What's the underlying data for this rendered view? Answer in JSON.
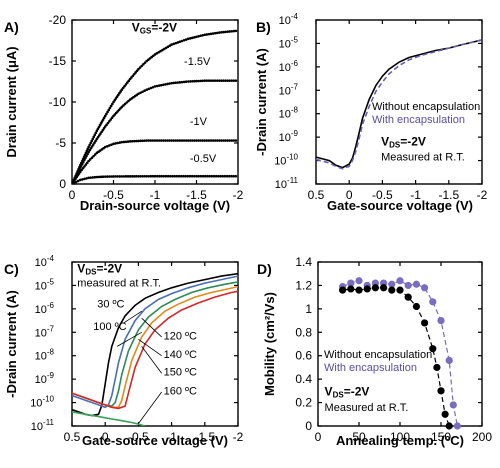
{
  "chart_data": [
    {
      "panel": "A)",
      "type": "line",
      "xlabel": "Drain-source voltage (V)",
      "ylabel": "Drain current (μA)",
      "xlim": [
        0,
        -2
      ],
      "ylim": [
        0,
        -20
      ],
      "xticks": [
        {
          "v": 0,
          "t": "0"
        },
        {
          "v": -0.5,
          "t": "-0.5"
        },
        {
          "v": -1,
          "t": "-1"
        },
        {
          "v": -1.5,
          "t": "-1.5"
        },
        {
          "v": -2,
          "t": "-2"
        }
      ],
      "yticks": [
        {
          "v": 0,
          "t": "0"
        },
        {
          "v": -5,
          "t": "-5"
        },
        {
          "v": -10,
          "t": "-10"
        },
        {
          "v": -15,
          "t": "-15"
        },
        {
          "v": -20,
          "t": "-20"
        }
      ],
      "annotations": [
        {
          "text": "V",
          "sub": "GS",
          "rest": "=-2V",
          "x": -0.72,
          "y": -18.6
        },
        {
          "text": "-1.5V",
          "x": -1.35,
          "y": -14.5
        },
        {
          "text": "-1V",
          "x": -1.42,
          "y": -7.2
        },
        {
          "text": "-0.5V",
          "x": -1.42,
          "y": -2.7
        }
      ],
      "series": [
        {
          "label": "V_GS=-2V",
          "style": "dotted",
          "x": [
            0,
            -0.1,
            -0.2,
            -0.3,
            -0.4,
            -0.5,
            -0.6,
            -0.7,
            -0.8,
            -0.9,
            -1.0,
            -1.2,
            -1.4,
            -1.6,
            -1.8,
            -2.0
          ],
          "y": [
            0,
            -2.3,
            -4.5,
            -6.5,
            -8.3,
            -10.0,
            -11.5,
            -12.8,
            -14.0,
            -15.0,
            -15.8,
            -17.0,
            -17.7,
            -18.2,
            -18.5,
            -18.7
          ]
        },
        {
          "label": "-1.5V",
          "style": "dotted",
          "x": [
            0,
            -0.1,
            -0.2,
            -0.3,
            -0.4,
            -0.5,
            -0.6,
            -0.7,
            -0.8,
            -0.9,
            -1.0,
            -1.2,
            -1.4,
            -1.6,
            -1.8,
            -2.0
          ],
          "y": [
            0,
            -2.0,
            -3.9,
            -5.5,
            -7.0,
            -8.3,
            -9.4,
            -10.3,
            -11.0,
            -11.5,
            -11.9,
            -12.3,
            -12.5,
            -12.6,
            -12.6,
            -12.6
          ]
        },
        {
          "label": "-1V",
          "style": "dotted",
          "x": [
            0,
            -0.1,
            -0.2,
            -0.3,
            -0.4,
            -0.5,
            -0.6,
            -0.7,
            -0.8,
            -0.9,
            -1.0,
            -1.2,
            -1.4,
            -1.6,
            -1.8,
            -2.0
          ],
          "y": [
            0,
            -1.5,
            -2.8,
            -3.8,
            -4.5,
            -4.9,
            -5.1,
            -5.2,
            -5.25,
            -5.3,
            -5.3,
            -5.3,
            -5.3,
            -5.3,
            -5.3,
            -5.3
          ]
        },
        {
          "label": "-0.5V",
          "style": "dotted",
          "x": [
            0,
            -0.1,
            -0.2,
            -0.3,
            -0.4,
            -0.5,
            -0.6,
            -0.8,
            -1.0,
            -1.5,
            -2.0
          ],
          "y": [
            0,
            -0.5,
            -0.75,
            -0.85,
            -0.9,
            -0.92,
            -0.93,
            -0.94,
            -0.95,
            -0.95,
            -0.95
          ]
        }
      ]
    },
    {
      "panel": "B)",
      "type": "line",
      "log_y": true,
      "xlabel": "Gate-source voltage (V)",
      "ylabel": "-Drain current (A)",
      "xlim": [
        0.5,
        -2
      ],
      "ylim_exp": [
        -11,
        -4
      ],
      "xticks": [
        {
          "v": 0.5,
          "t": "0.5"
        },
        {
          "v": 0,
          "t": "0"
        },
        {
          "v": -0.5,
          "t": "-0.5"
        },
        {
          "v": -1,
          "t": "-1"
        },
        {
          "v": -1.5,
          "t": "-1.5"
        },
        {
          "v": -2,
          "t": "-2"
        }
      ],
      "yticks_exp": [
        -4,
        -5,
        -6,
        -7,
        -8,
        -9,
        -10,
        -11
      ],
      "legend": [
        {
          "label": "Without encapsulation",
          "color": "#000000"
        },
        {
          "label": "With encapsulation",
          "color": "#5b4ea0"
        }
      ],
      "annotations": [
        {
          "text": "V",
          "sub": "DS",
          "rest": "=-2V",
          "x": -0.48,
          "y": -9.35
        },
        {
          "text": "Measured at R.T.",
          "x": -0.48,
          "y": -10.0
        }
      ],
      "series": [
        {
          "name": "Without encapsulation",
          "color": "#000000",
          "style": "solid",
          "x": [
            0.5,
            0.3,
            0.2,
            0.1,
            0.0,
            -0.05,
            -0.1,
            -0.15,
            -0.2,
            -0.3,
            -0.4,
            -0.5,
            -0.6,
            -0.75,
            -0.9,
            -1.1,
            -1.3,
            -1.5,
            -1.7,
            -2.0
          ],
          "log10y": [
            -9.85,
            -10.0,
            -10.2,
            -10.3,
            -10.15,
            -9.9,
            -9.4,
            -8.8,
            -8.2,
            -7.4,
            -6.8,
            -6.4,
            -6.1,
            -5.8,
            -5.6,
            -5.45,
            -5.3,
            -5.2,
            -5.05,
            -4.85
          ]
        },
        {
          "name": "With encapsulation",
          "color": "#6a5cb0",
          "style": "dashed",
          "x": [
            0.5,
            0.3,
            0.2,
            0.1,
            0.0,
            -0.05,
            -0.1,
            -0.15,
            -0.2,
            -0.3,
            -0.4,
            -0.5,
            -0.6,
            -0.75,
            -0.9,
            -1.1,
            -1.3,
            -1.5,
            -1.7,
            -2.0
          ],
          "log10y": [
            -9.95,
            -10.1,
            -10.25,
            -10.35,
            -10.25,
            -10.0,
            -9.6,
            -9.05,
            -8.45,
            -7.7,
            -7.05,
            -6.65,
            -6.3,
            -5.95,
            -5.7,
            -5.5,
            -5.35,
            -5.2,
            -5.05,
            -4.85
          ]
        }
      ]
    },
    {
      "panel": "C)",
      "type": "line",
      "log_y": true,
      "xlabel": "Gate-source voltage (V)",
      "ylabel": "-Drain current (A)",
      "xlim": [
        0.5,
        -2
      ],
      "ylim_exp": [
        -11,
        -4
      ],
      "xticks": [
        {
          "v": 0.5,
          "t": "0.5"
        },
        {
          "v": 0,
          "t": "0"
        },
        {
          "v": -0.5,
          "t": "-0.5"
        },
        {
          "v": -1,
          "t": "-1"
        },
        {
          "v": -1.5,
          "t": "-1.5"
        },
        {
          "v": -2,
          "t": "-2"
        }
      ],
      "yticks_exp": [
        -4,
        -5,
        -6,
        -7,
        -8,
        -9,
        -10,
        -11
      ],
      "annotations": [
        {
          "text": "V",
          "sub": "DS",
          "rest": "=-2V",
          "x": 0.42,
          "y": -4.45,
          "bold": true
        },
        {
          "text": "measured at R.T.",
          "x": 0.42,
          "y": -5.05
        },
        {
          "text": "30 ºC",
          "x": 0.12,
          "y": -5.95
        },
        {
          "text": "100 ºC",
          "x": 0.18,
          "y": -6.9
        },
        {
          "text": "120 ºC",
          "x": -0.88,
          "y": -7.3
        },
        {
          "text": "140 ºC",
          "x": -0.88,
          "y": -8.1
        },
        {
          "text": "150 ºC",
          "x": -0.88,
          "y": -8.85
        },
        {
          "text": "160 ºC",
          "x": -0.88,
          "y": -9.65
        }
      ],
      "series": [
        {
          "name": "30 ºC",
          "color": "#000000",
          "x": [
            0.5,
            0.4,
            0.3,
            0.2,
            0.1,
            0.05,
            0.0,
            -0.05,
            -0.1,
            -0.2,
            -0.3,
            -0.45,
            -0.6,
            -0.8,
            -1.0,
            -1.25,
            -1.5,
            -1.75,
            -2.0
          ],
          "log10y": [
            -10.3,
            -10.4,
            -10.5,
            -10.55,
            -10.5,
            -10.1,
            -9.2,
            -8.3,
            -7.6,
            -6.8,
            -6.3,
            -5.85,
            -5.55,
            -5.3,
            -5.1,
            -4.9,
            -4.75,
            -4.6,
            -4.5
          ]
        },
        {
          "name": "100 ºC",
          "color": "#4a6fb5",
          "x": [
            0.5,
            0.3,
            0.1,
            0.0,
            -0.05,
            -0.1,
            -0.15,
            -0.2,
            -0.3,
            -0.45,
            -0.6,
            -0.8,
            -1.0,
            -1.25,
            -1.5,
            -1.75,
            -2.0
          ],
          "log10y": [
            -9.7,
            -9.9,
            -10.1,
            -10.2,
            -10.1,
            -9.7,
            -9.0,
            -8.3,
            -7.3,
            -6.5,
            -6.0,
            -5.6,
            -5.35,
            -5.1,
            -4.9,
            -4.75,
            -4.6
          ]
        },
        {
          "name": "120 ºC",
          "color": "#2e8b57",
          "x": [
            0.5,
            0.3,
            0.1,
            0.0,
            -0.1,
            -0.15,
            -0.2,
            -0.25,
            -0.35,
            -0.5,
            -0.65,
            -0.85,
            -1.05,
            -1.3,
            -1.55,
            -1.8,
            -2.0
          ],
          "log10y": [
            -9.6,
            -9.8,
            -10.0,
            -10.1,
            -10.15,
            -10.0,
            -9.5,
            -8.8,
            -7.8,
            -6.9,
            -6.35,
            -5.9,
            -5.6,
            -5.3,
            -5.1,
            -4.95,
            -4.85
          ]
        },
        {
          "name": "140 ºC",
          "color": "#e08a1e",
          "x": [
            0.5,
            0.3,
            0.1,
            0.0,
            -0.1,
            -0.2,
            -0.25,
            -0.3,
            -0.4,
            -0.55,
            -0.7,
            -0.9,
            -1.1,
            -1.35,
            -1.6,
            -1.85,
            -2.0
          ],
          "log10y": [
            -9.6,
            -9.8,
            -10.0,
            -10.1,
            -10.2,
            -10.2,
            -9.9,
            -9.3,
            -8.2,
            -7.2,
            -6.6,
            -6.1,
            -5.8,
            -5.5,
            -5.3,
            -5.15,
            -5.05
          ]
        },
        {
          "name": "150 ºC",
          "color": "#d62728",
          "x": [
            0.5,
            0.3,
            0.1,
            0.0,
            -0.1,
            -0.2,
            -0.3,
            -0.35,
            -0.45,
            -0.6,
            -0.75,
            -0.95,
            -1.15,
            -1.4,
            -1.65,
            -1.9,
            -2.0
          ],
          "log10y": [
            -9.6,
            -9.8,
            -10.0,
            -10.1,
            -10.2,
            -10.25,
            -10.15,
            -9.6,
            -8.5,
            -7.5,
            -6.9,
            -6.4,
            -6.05,
            -5.75,
            -5.5,
            -5.3,
            -5.25
          ]
        },
        {
          "name": "160 ºC",
          "color": "#3aa05a",
          "x": [
            0.5,
            0.3,
            0.1,
            0.0,
            -0.1,
            -0.2,
            -0.3,
            -0.4,
            -0.5,
            -0.6
          ],
          "log10y": [
            -10.4,
            -10.5,
            -10.6,
            -10.65,
            -10.7,
            -10.75,
            -10.8,
            -10.85,
            -10.92,
            -11.0
          ]
        }
      ]
    },
    {
      "panel": "D)",
      "type": "scatter",
      "xlabel": "Annealing temp. (°C)",
      "ylabel": "Mobility (cm²/Vs)",
      "xlim": [
        0,
        200
      ],
      "ylim": [
        0,
        1.4
      ],
      "xticks": [
        {
          "v": 0,
          "t": "0"
        },
        {
          "v": 50,
          "t": "50"
        },
        {
          "v": 100,
          "t": "100"
        },
        {
          "v": 150,
          "t": "150"
        },
        {
          "v": 200,
          "t": "200"
        }
      ],
      "yticks": [
        {
          "v": 0,
          "t": "0"
        },
        {
          "v": 0.2,
          "t": "0.2"
        },
        {
          "v": 0.4,
          "t": "0.4"
        },
        {
          "v": 0.6,
          "t": "0.6"
        },
        {
          "v": 0.8,
          "t": "0.8"
        },
        {
          "v": 1,
          "t": "1"
        },
        {
          "v": 1.2,
          "t": "1.2"
        },
        {
          "v": 1.4,
          "t": "1.4"
        }
      ],
      "legend": [
        {
          "label": "Without encapsulation",
          "color": "#000000"
        },
        {
          "label": "With encapsulation",
          "color": "#5b4ea0"
        }
      ],
      "annotations": [
        {
          "text": "V",
          "sub": "DS",
          "rest": "=-2V",
          "x": 8,
          "y": 0.26
        },
        {
          "text": "Measured at R.T.",
          "x": 8,
          "y": 0.13
        }
      ],
      "series": [
        {
          "name": "With encapsulation",
          "color": "#7a6cc0",
          "style": "dashed",
          "x": [
            30,
            40,
            50,
            60,
            70,
            80,
            90,
            100,
            110,
            120,
            130,
            140,
            150,
            160,
            165,
            170
          ],
          "y": [
            1.19,
            1.22,
            1.24,
            1.2,
            1.22,
            1.22,
            1.21,
            1.24,
            1.2,
            1.21,
            1.18,
            1.06,
            0.9,
            0.56,
            0.18,
            0.0
          ]
        },
        {
          "name": "Without encapsulation",
          "color": "#000000",
          "style": "dashed",
          "x": [
            30,
            40,
            50,
            60,
            70,
            80,
            90,
            100,
            110,
            120,
            130,
            140,
            145,
            150,
            155,
            160
          ],
          "y": [
            1.16,
            1.17,
            1.16,
            1.17,
            1.18,
            1.18,
            1.16,
            1.16,
            1.1,
            1.02,
            0.88,
            0.66,
            0.5,
            0.3,
            0.1,
            0.0
          ]
        }
      ]
    }
  ]
}
